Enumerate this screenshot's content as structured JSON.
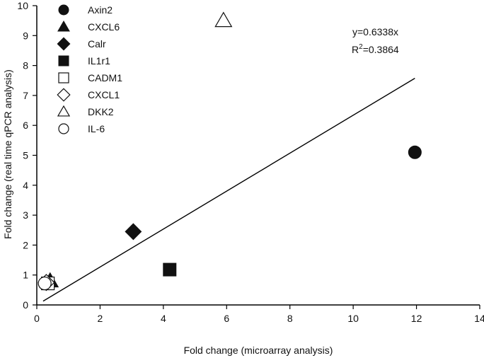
{
  "chart_data": {
    "type": "scatter",
    "xlabel": "Fold  change (microarray analysis)",
    "ylabel": "Fold change (real time qPCR analysis)",
    "xlim": [
      0,
      14
    ],
    "ylim": [
      0,
      10
    ],
    "x_ticks": [
      0,
      2,
      4,
      6,
      8,
      10,
      12,
      14
    ],
    "y_ticks": [
      0,
      1,
      2,
      3,
      4,
      5,
      6,
      7,
      8,
      9,
      10
    ],
    "legend_position": "top-left",
    "grid": false,
    "series": [
      {
        "name": "Axin2",
        "marker": "circle-filled",
        "points": [
          [
            11.95,
            5.1
          ]
        ]
      },
      {
        "name": "CXCL6",
        "marker": "triangle-filled",
        "points": [
          [
            0.42,
            0.8
          ]
        ]
      },
      {
        "name": "Calr",
        "marker": "diamond-filled",
        "points": [
          [
            3.05,
            2.45
          ]
        ]
      },
      {
        "name": "IL1r1",
        "marker": "square-filled",
        "points": [
          [
            4.2,
            1.18
          ]
        ]
      },
      {
        "name": "CADM1",
        "marker": "square-open",
        "points": [
          [
            0.35,
            0.72
          ]
        ]
      },
      {
        "name": "CXCL1",
        "marker": "diamond-open",
        "points": [
          [
            0.3,
            0.75
          ]
        ]
      },
      {
        "name": "DKK2",
        "marker": "triangle-open",
        "points": [
          [
            5.9,
            9.5
          ]
        ]
      },
      {
        "name": "IL-6",
        "marker": "circle-open",
        "points": [
          [
            0.25,
            0.72
          ]
        ]
      }
    ],
    "trendline": {
      "slope": 0.6338,
      "x_range": [
        0.2,
        11.95
      ]
    },
    "annotations": {
      "equation": "y=0.6338x",
      "r2_base": "R",
      "r2_exp": "2",
      "r2_value": "=0.3864"
    }
  }
}
